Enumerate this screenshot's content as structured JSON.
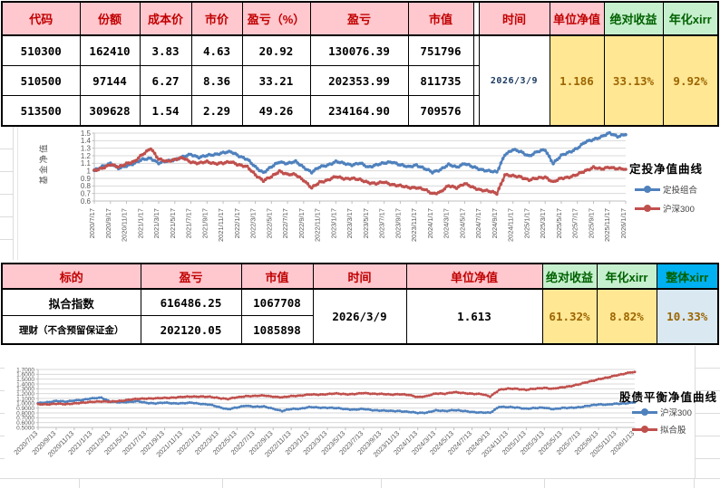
{
  "table1": {
    "headers": [
      "代码",
      "份额",
      "成本价",
      "市价",
      "盈亏（%）",
      "盈亏",
      "市值",
      "时间",
      "单位净值",
      "绝对收益",
      "年化xirr"
    ],
    "rows": [
      [
        "510300",
        "162410",
        "3.83",
        "4.63",
        "20.92",
        "130076.39",
        "751796"
      ],
      [
        "510500",
        "97144",
        "6.27",
        "8.36",
        "33.21",
        "202353.99",
        "811735"
      ],
      [
        "513500",
        "309628",
        "1.54",
        "2.29",
        "49.26",
        "234164.90",
        "709576"
      ]
    ],
    "merged": {
      "time": "2026/3/9",
      "unit_nav": "1.186",
      "abs_return": "33.13%",
      "xirr": "9.92%"
    }
  },
  "table2": {
    "headers": [
      "标的",
      "盈亏",
      "市值",
      "时间",
      "单位净值",
      "绝对收益",
      "年化xirr",
      "整体xirr"
    ],
    "rows": [
      [
        "拟合指数",
        "616486.25",
        "1067708"
      ],
      [
        "理财（不含预留保证金）",
        "202120.05",
        "1085898"
      ]
    ],
    "merged": {
      "time": "2026/3/9",
      "unit_nav": "1.613",
      "abs_return": "61.32%",
      "xirr": "8.82%",
      "overall_xirr": "10.33%"
    }
  },
  "chart_data": [
    {
      "type": "line",
      "title": "定投净值曲线",
      "ylabel": "基金净值",
      "ylim": [
        0.6,
        1.5
      ],
      "yticks": [
        "1.5",
        "1.4",
        "1.3",
        "1.2",
        "1.1",
        "1",
        "0.9",
        "0.8",
        "0.7",
        "0.6"
      ],
      "grid": true,
      "legend_position": "right",
      "months_per_tick": 2,
      "x_labels": [
        "2020/7/17",
        "2020/9/17",
        "2020/11/17",
        "2021/1/17",
        "2021/3/17",
        "2021/5/17",
        "2021/7/17",
        "2021/9/17",
        "2021/11/17",
        "2022/1/17",
        "2022/3/17",
        "2022/5/17",
        "2022/7/17",
        "2022/9/17",
        "2022/11/17",
        "2023/1/17",
        "2023/3/17",
        "2023/5/17",
        "2023/7/17",
        "2023/9/17",
        "2023/11/17",
        "2024/1/17",
        "2024/3/17",
        "2024/5/17",
        "2024/7/17",
        "2024/9/17",
        "2024/11/17",
        "2025/1/17",
        "2025/3/17",
        "2025/5/17",
        "2025/7/17",
        "2025/9/17",
        "2025/11/17",
        "2026/1/17"
      ],
      "series": [
        {
          "name": "定投组合",
          "color": "#4F81BD",
          "values": [
            1.0,
            1.06,
            1.1,
            1.03,
            1.07,
            1.1,
            1.15,
            1.17,
            1.1,
            1.13,
            1.15,
            1.18,
            1.22,
            1.18,
            1.2,
            1.22,
            1.24,
            1.25,
            1.2,
            1.15,
            1.05,
            0.98,
            1.05,
            1.12,
            1.1,
            1.12,
            1.05,
            0.98,
            1.05,
            1.08,
            1.12,
            1.1,
            1.08,
            1.1,
            1.05,
            1.08,
            1.1,
            1.12,
            1.08,
            1.05,
            1.08,
            1.03,
            0.98,
            1.02,
            1.08,
            1.05,
            1.1,
            1.05,
            1.02,
            1.0,
            0.98,
            1.22,
            1.28,
            1.25,
            1.2,
            1.25,
            1.28,
            1.1,
            1.2,
            1.25,
            1.3,
            1.38,
            1.42,
            1.45,
            1.5,
            1.46,
            1.48
          ]
        },
        {
          "name": "沪深300",
          "color": "#C0504D",
          "values": [
            1.0,
            1.04,
            1.08,
            1.05,
            1.1,
            1.12,
            1.22,
            1.3,
            1.15,
            1.13,
            1.15,
            1.17,
            1.12,
            1.1,
            1.12,
            1.1,
            1.1,
            1.12,
            1.08,
            1.05,
            0.95,
            0.87,
            0.92,
            1.0,
            0.95,
            0.95,
            0.88,
            0.77,
            0.85,
            0.88,
            0.92,
            0.9,
            0.9,
            0.88,
            0.85,
            0.83,
            0.85,
            0.82,
            0.8,
            0.78,
            0.78,
            0.75,
            0.7,
            0.72,
            0.8,
            0.78,
            0.83,
            0.78,
            0.75,
            0.73,
            0.7,
            0.95,
            0.93,
            0.92,
            0.88,
            0.9,
            0.92,
            0.85,
            0.9,
            0.92,
            0.95,
            1.0,
            1.05,
            1.02,
            1.05,
            1.03,
            1.02
          ]
        }
      ]
    },
    {
      "type": "line",
      "title": "股债平衡净值曲线",
      "ylabel": "",
      "ylim": [
        0.5,
        1.7
      ],
      "yticks": [
        "1.7000",
        "1.6000",
        "1.5000",
        "1.4000",
        "1.3000",
        "1.2000",
        "1.1000",
        "1.0000",
        "0.9000",
        "0.8000",
        "0.7000",
        "0.6000",
        "0.5000"
      ],
      "grid": true,
      "legend_position": "right",
      "months_per_tick": 2,
      "x_labels": [
        "2020/7/13",
        "2020/9/13",
        "2020/11/13",
        "2021/1/13",
        "2021/3/13",
        "2021/5/13",
        "2021/7/13",
        "2021/9/13",
        "2021/11/13",
        "2022/1/13",
        "2022/3/13",
        "2022/5/13",
        "2022/7/13",
        "2022/9/13",
        "2022/11/13",
        "2023/1/13",
        "2023/3/13",
        "2023/5/13",
        "2023/7/13",
        "2023/9/13",
        "2023/11/13",
        "2024/1/13",
        "2024/3/13",
        "2024/5/13",
        "2024/7/13",
        "2024/9/13",
        "2024/11/13",
        "2025/1/13",
        "2025/3/13",
        "2025/5/13",
        "2025/7/13",
        "2025/9/13",
        "2025/11/13",
        "2026/1/13"
      ],
      "series": [
        {
          "name": "沪深300",
          "color": "#4F81BD",
          "values": [
            1.0,
            1.02,
            1.05,
            1.03,
            1.06,
            1.07,
            1.1,
            1.12,
            1.03,
            1.02,
            1.03,
            1.04,
            1.01,
            1.0,
            1.01,
            1.0,
            1.0,
            1.01,
            0.99,
            0.97,
            0.92,
            0.88,
            0.91,
            0.95,
            0.93,
            0.93,
            0.89,
            0.84,
            0.88,
            0.89,
            0.92,
            0.91,
            0.91,
            0.9,
            0.88,
            0.87,
            0.88,
            0.86,
            0.85,
            0.84,
            0.84,
            0.82,
            0.8,
            0.81,
            0.85,
            0.84,
            0.86,
            0.84,
            0.82,
            0.81,
            0.8,
            0.93,
            0.92,
            0.91,
            0.89,
            0.9,
            0.91,
            0.88,
            0.9,
            0.91,
            0.92,
            0.95,
            0.98,
            0.97,
            0.99,
            1.0,
            1.02
          ]
        },
        {
          "name": "拟合股",
          "color": "#C0504D",
          "values": [
            0.98,
            0.98,
            0.99,
            0.98,
            1.0,
            1.01,
            1.03,
            1.04,
            1.03,
            1.05,
            1.07,
            1.09,
            1.1,
            1.1,
            1.11,
            1.12,
            1.13,
            1.14,
            1.14,
            1.13,
            1.11,
            1.09,
            1.12,
            1.15,
            1.15,
            1.16,
            1.14,
            1.12,
            1.15,
            1.16,
            1.18,
            1.18,
            1.19,
            1.2,
            1.19,
            1.19,
            1.21,
            1.2,
            1.19,
            1.18,
            1.19,
            1.17,
            1.13,
            1.15,
            1.2,
            1.2,
            1.23,
            1.21,
            1.2,
            1.19,
            1.14,
            1.28,
            1.3,
            1.3,
            1.28,
            1.3,
            1.32,
            1.3,
            1.33,
            1.36,
            1.4,
            1.45,
            1.5,
            1.53,
            1.58,
            1.62,
            1.65
          ]
        }
      ]
    }
  ]
}
